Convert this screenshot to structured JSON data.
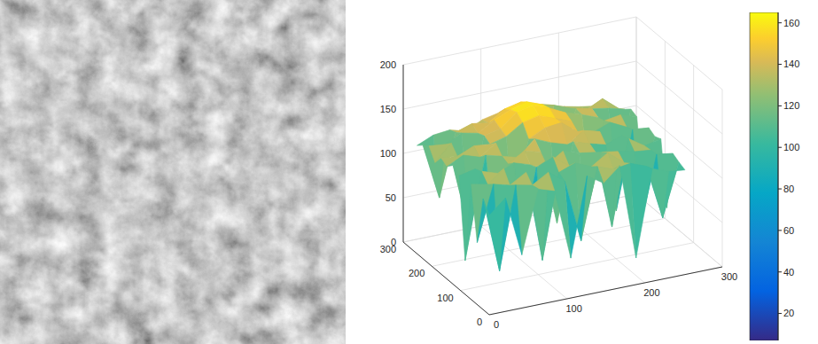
{
  "chart_data": {
    "type": "surface",
    "x": [
      0,
      21,
      42,
      63,
      84,
      105,
      126,
      147,
      168,
      189,
      210,
      231,
      252
    ],
    "y": [
      0,
      21,
      42,
      63,
      84,
      105,
      126,
      147,
      168,
      189,
      210,
      231,
      252
    ],
    "z": [
      [
        112,
        128,
        60,
        131,
        125,
        45,
        134,
        122,
        138,
        30,
        127,
        120,
        118
      ],
      [
        125,
        40,
        133,
        129,
        140,
        126,
        55,
        135,
        128,
        131,
        124,
        62,
        121
      ],
      [
        70,
        132,
        127,
        138,
        35,
        130,
        137,
        129,
        141,
        126,
        50,
        128,
        125
      ],
      [
        130,
        126,
        140,
        48,
        134,
        142,
        128,
        65,
        136,
        133,
        129,
        127,
        58
      ],
      [
        38,
        135,
        129,
        137,
        131,
        127,
        139,
        133,
        130,
        42,
        138,
        126,
        130
      ],
      [
        128,
        132,
        75,
        130,
        141,
        136,
        52,
        140,
        134,
        129,
        136,
        68,
        127
      ],
      [
        134,
        55,
        138,
        133,
        128,
        145,
        137,
        131,
        143,
        138,
        45,
        133,
        131
      ],
      [
        127,
        136,
        130,
        142,
        62,
        139,
        148,
        150,
        136,
        132,
        139,
        130,
        60
      ],
      [
        131,
        129,
        137,
        135,
        140,
        152,
        156,
        149,
        142,
        80,
        135,
        138,
        132
      ],
      [
        120,
        138,
        50,
        139,
        143,
        158,
        162,
        155,
        146,
        140,
        133,
        57,
        135
      ],
      [
        133,
        131,
        140,
        136,
        147,
        155,
        160,
        153,
        70,
        141,
        137,
        134,
        129
      ],
      [
        128,
        65,
        135,
        141,
        138,
        150,
        154,
        148,
        143,
        136,
        130,
        139,
        124
      ],
      [
        122,
        130,
        132,
        127,
        136,
        140,
        145,
        142,
        137,
        132,
        128,
        125,
        120
      ]
    ],
    "xlim": [
      0,
      300
    ],
    "xticks": [
      0,
      100,
      200,
      300
    ],
    "ylim": [
      0,
      300
    ],
    "yticks": [
      0,
      100,
      200,
      300
    ],
    "zlim": [
      0,
      200
    ],
    "zticks": [
      0,
      50,
      100,
      150,
      200
    ],
    "grid": true,
    "colorbar": {
      "range": [
        7,
        165
      ],
      "ticks": [
        20,
        40,
        60,
        80,
        100,
        120,
        140,
        160
      ]
    }
  }
}
